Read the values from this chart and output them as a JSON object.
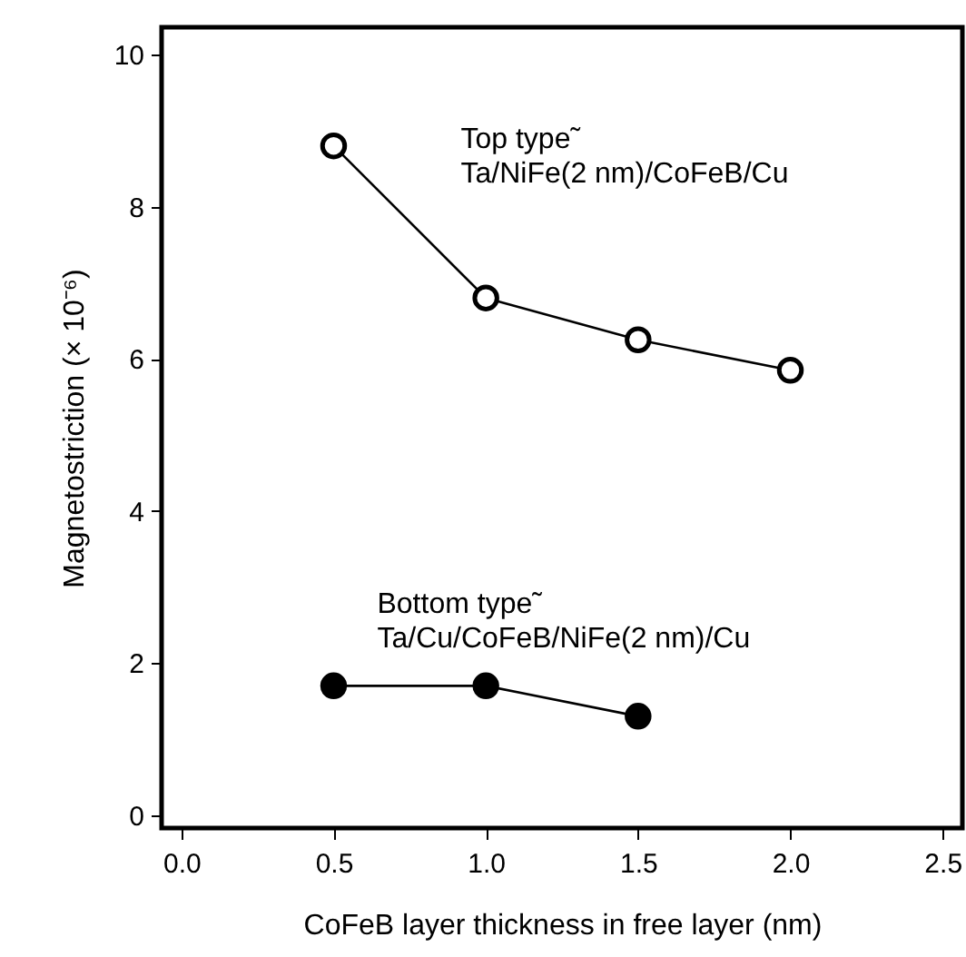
{
  "chart_data": {
    "type": "line",
    "xlabel": "CoFeB layer thickness in free layer (nm)",
    "ylabel": "Magnetostriction (× 10⁻⁶)",
    "x": [
      0.5,
      1.0,
      1.5,
      2.0
    ],
    "series": [
      {
        "name": "Top type˜\nTa/NiFe(2 nm)/CoFeB/Cu",
        "color": "#000000",
        "values": [
          8.8,
          6.8,
          6.25,
          5.85
        ]
      },
      {
        "name": "Bottom type˜\nTa/Cu/CoFeB/NiFe(2 nm)/Cu",
        "color": "#000000",
        "values": [
          1.7,
          1.7,
          1.3,
          null
        ]
      }
    ],
    "xlim": [
      -0.065,
      2.565
    ],
    "xticks": [
      {
        "value": 0,
        "label": "0.0"
      },
      0.5,
      {
        "value": 1,
        "label": "1.0"
      },
      1.5,
      {
        "value": 2,
        "label": "2.0"
      },
      2.5
    ],
    "ylim": [
      -0.17,
      10.36
    ],
    "yticks": [
      0,
      2,
      4,
      6,
      8,
      10
    ],
    "marker": "circle",
    "line_style": "solid",
    "grid": false
  }
}
